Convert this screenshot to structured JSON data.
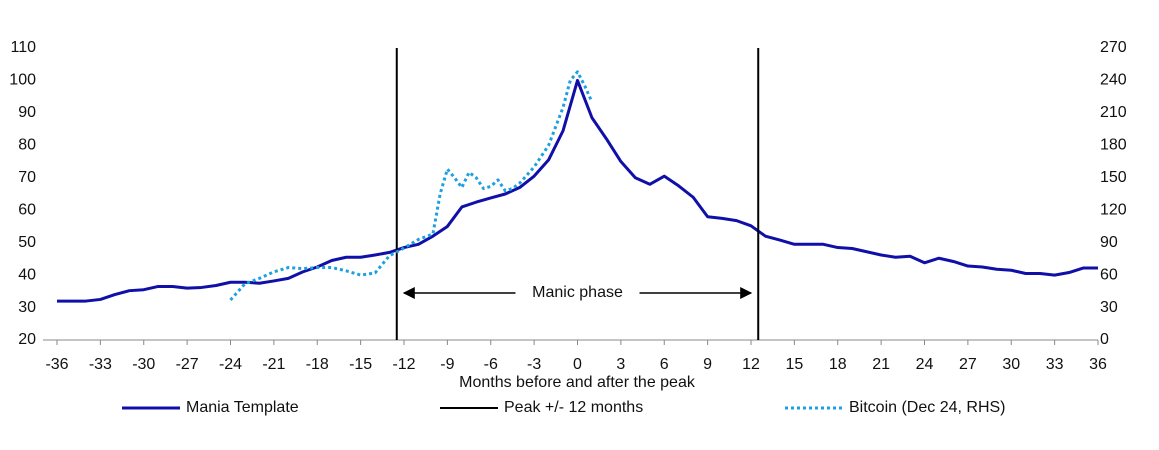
{
  "chart_data": {
    "type": "line",
    "x_label": "Months before and after the peak",
    "xlim": [
      -36,
      36
    ],
    "xticks": [
      -36,
      -33,
      -30,
      -27,
      -24,
      -21,
      -18,
      -15,
      -12,
      -9,
      -6,
      -3,
      0,
      3,
      6,
      9,
      12,
      15,
      18,
      21,
      24,
      27,
      30,
      33,
      36
    ],
    "ylim": [
      20,
      110
    ],
    "yticks": [
      20,
      30,
      40,
      50,
      60,
      70,
      80,
      90,
      100,
      110
    ],
    "y2lim": [
      0,
      270
    ],
    "y2ticks": [
      0,
      30,
      60,
      90,
      120,
      150,
      180,
      210,
      240,
      270
    ],
    "annotation": {
      "text": "Manic phase",
      "x": [
        -12,
        12
      ]
    },
    "series": [
      {
        "name": "Mania Template",
        "color": "#1010a8",
        "style": "solid",
        "x": [
          -36,
          -35,
          -34,
          -33,
          -32,
          -31,
          -30,
          -29,
          -28,
          -27,
          -26,
          -25,
          -24,
          -23,
          -22,
          -21,
          -20,
          -19,
          -18,
          -17,
          -16,
          -15,
          -14,
          -13,
          -12,
          -11,
          -10,
          -9,
          -8,
          -7,
          -6,
          -5,
          -4,
          -3,
          -2,
          -1,
          0,
          1,
          2,
          3,
          4,
          5,
          6,
          7,
          8,
          9,
          10,
          11,
          12,
          13,
          14,
          15,
          16,
          17,
          18,
          19,
          20,
          21,
          22,
          23,
          24,
          25,
          26,
          27,
          28,
          29,
          30,
          31,
          32,
          33,
          34,
          35,
          36
        ],
        "values": [
          32,
          32,
          32,
          32.5,
          34,
          35.2,
          35.5,
          36.5,
          36.5,
          36,
          36.2,
          36.8,
          37.8,
          37.8,
          37.5,
          38.2,
          39,
          41,
          42.5,
          44.5,
          45.5,
          45.5,
          46.2,
          47,
          48.5,
          49.5,
          52,
          55,
          61,
          62.5,
          63.8,
          65,
          67,
          70.5,
          75.5,
          84.5,
          100,
          88.5,
          82,
          75,
          70,
          68,
          70.5,
          67.5,
          64,
          58,
          57.5,
          56.8,
          55.2,
          52,
          50.8,
          49.5,
          49.5,
          49.5,
          48.5,
          48.2,
          47.2,
          46.2,
          45.5,
          45.8,
          43.8,
          45.2,
          44.2,
          42.8,
          42.5,
          41.8,
          41.5,
          40.5,
          40.5,
          40,
          40.8,
          42.2,
          42.2
        ]
      },
      {
        "name": "Peak +/- 12 months",
        "color": "#000000",
        "style": "vline",
        "x": [
          -12.5,
          12.5
        ]
      },
      {
        "name": "Bitcoin (Dec 24, RHS)",
        "color": "#1ea0e0",
        "style": "dotted",
        "axis": "y2",
        "x": [
          -24,
          -23,
          -22,
          -21,
          -20,
          -19,
          -18,
          -17,
          -16,
          -15,
          -14,
          -13,
          -12,
          -11,
          -10,
          -9.5,
          -9,
          -8.5,
          -8,
          -7.5,
          -7,
          -6.5,
          -6,
          -5.5,
          -5,
          -4.5,
          -4,
          -3,
          -2,
          -1,
          -0.5,
          0,
          0.5,
          1
        ],
        "values": [
          37,
          52,
          57,
          63,
          67,
          66,
          67,
          67,
          64,
          60,
          62,
          78,
          85,
          93,
          98,
          135,
          158,
          150,
          141,
          155,
          150,
          140,
          142,
          148,
          138,
          140,
          145,
          160,
          180,
          215,
          240,
          248,
          235,
          220
        ]
      }
    ]
  }
}
